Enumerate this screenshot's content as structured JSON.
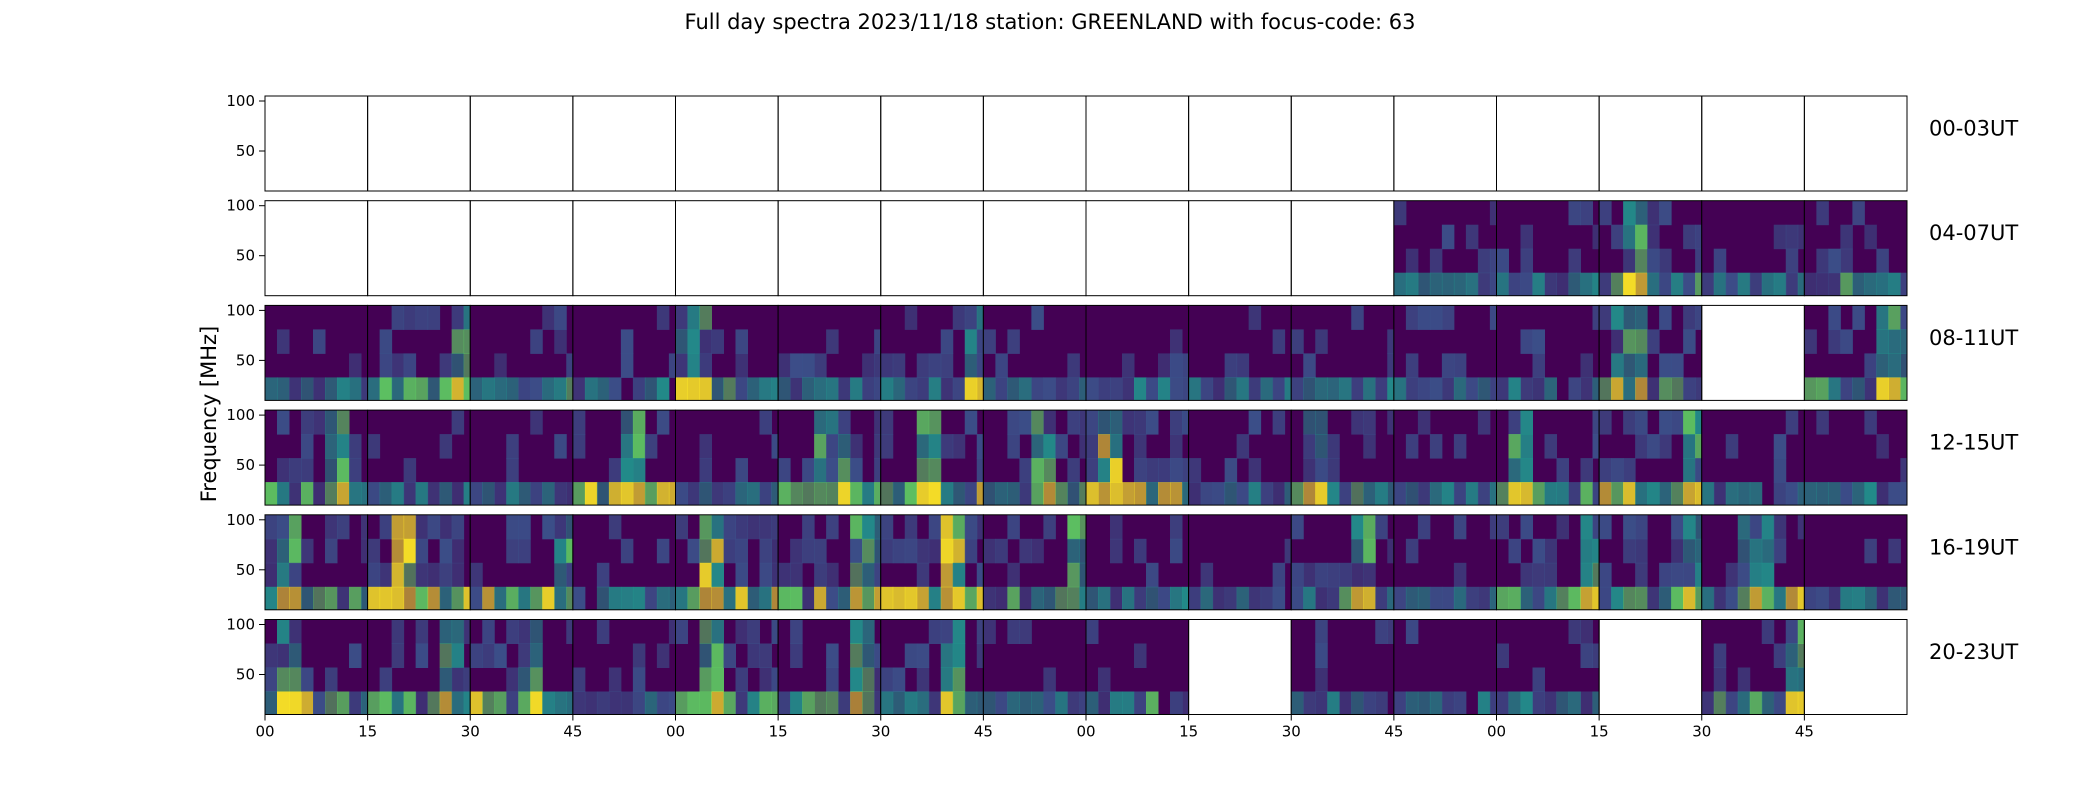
{
  "chart_data": {
    "type": "heatmap",
    "title": "Full day spectra 2023/11/18 station: GREENLAND with focus-code: 63",
    "ylabel": "Frequency [MHz]",
    "y_ticks": [
      "100",
      "50"
    ],
    "ylim": [
      10,
      105
    ],
    "x_ticks": [
      "00",
      "15",
      "30",
      "45",
      "00",
      "15",
      "30",
      "45",
      "00",
      "15",
      "30",
      "45",
      "00",
      "15",
      "30",
      "45"
    ],
    "colormap": [
      "#440154",
      "#3b528b",
      "#21918c",
      "#5ec962",
      "#fde725"
    ],
    "rows": [
      {
        "label": "00-03UT",
        "panels": [
          0,
          0,
          0,
          0,
          0,
          0,
          0,
          0,
          0,
          0,
          0,
          0,
          0,
          0,
          0,
          0
        ]
      },
      {
        "label": "04-07UT",
        "panels": [
          0,
          0,
          0,
          0,
          0,
          0,
          0,
          0,
          0,
          0,
          0,
          1,
          1,
          2,
          1,
          1
        ]
      },
      {
        "label": "08-11UT",
        "panels": [
          1,
          2,
          1,
          1,
          2,
          1,
          2,
          1,
          1,
          1,
          1,
          1,
          1,
          2,
          0,
          2
        ]
      },
      {
        "label": "12-15UT",
        "panels": [
          2,
          1,
          1,
          2,
          1,
          2,
          2,
          2,
          3,
          1,
          2,
          1,
          2,
          2,
          1,
          1
        ]
      },
      {
        "label": "16-19UT",
        "panels": [
          2,
          3,
          2,
          1,
          3,
          2,
          3,
          2,
          1,
          1,
          2,
          1,
          2,
          2,
          2,
          1
        ]
      },
      {
        "label": "20-23UT",
        "panels": [
          2,
          2,
          2,
          1,
          2,
          2,
          2,
          1,
          1,
          0,
          1,
          1,
          1,
          0,
          2,
          0
        ]
      }
    ]
  }
}
